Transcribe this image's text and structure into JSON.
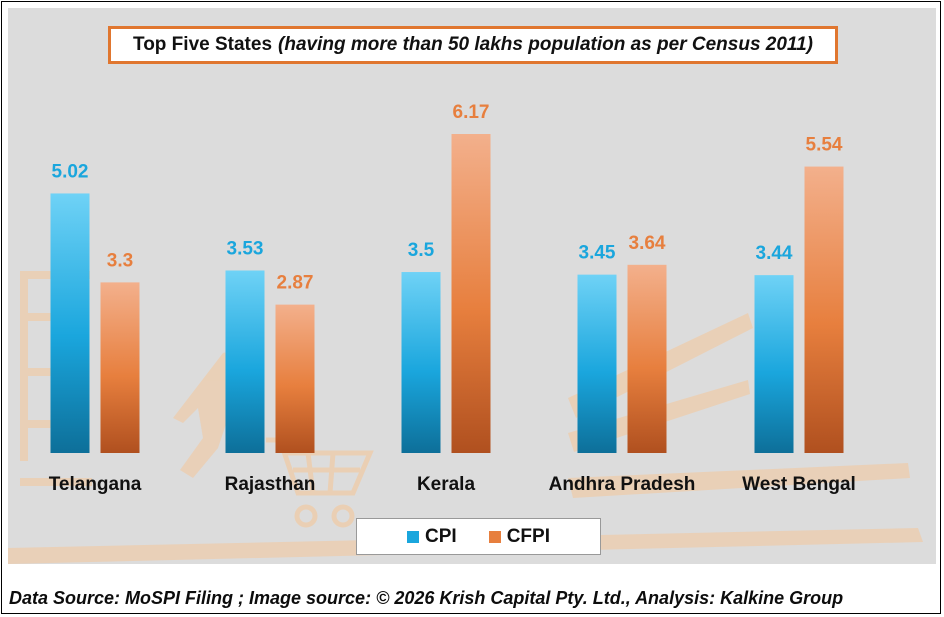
{
  "title": {
    "main": "Top Five States",
    "sub": "(having more than 50 lakhs population as per Census 2011)"
  },
  "footer": "Data Source: MoSPI Filing ; Image source: © 2026 Krish Capital Pty. Ltd., Analysis: Kalkine Group",
  "colors": {
    "cpi": "#1aa6dd",
    "cfpi": "#e77f3e",
    "title_border": "#e0762f",
    "plot_bg": "#dcdcdc"
  },
  "chart_data": {
    "type": "bar",
    "categories": [
      "Telangana",
      "Rajasthan",
      "Kerala",
      "Andhra Pradesh",
      "West Bengal"
    ],
    "series": [
      {
        "name": "CPI",
        "values": [
          5.02,
          3.53,
          3.5,
          3.45,
          3.44
        ]
      },
      {
        "name": "CFPI",
        "values": [
          3.3,
          2.87,
          6.17,
          3.64,
          5.54
        ]
      }
    ],
    "data_labels": {
      "CPI": [
        "5.02",
        "3.53",
        "3.5",
        "3.45",
        "3.44"
      ],
      "CFPI": [
        "3.3",
        "2.87",
        "6.17",
        "3.64",
        "5.54"
      ]
    },
    "title": "Top Five States (having more than 50 lakhs population as per Census 2011)",
    "xlabel": "",
    "ylabel": "",
    "ylim": [
      0,
      6.17
    ],
    "grid": false,
    "legend_position": "bottom"
  }
}
